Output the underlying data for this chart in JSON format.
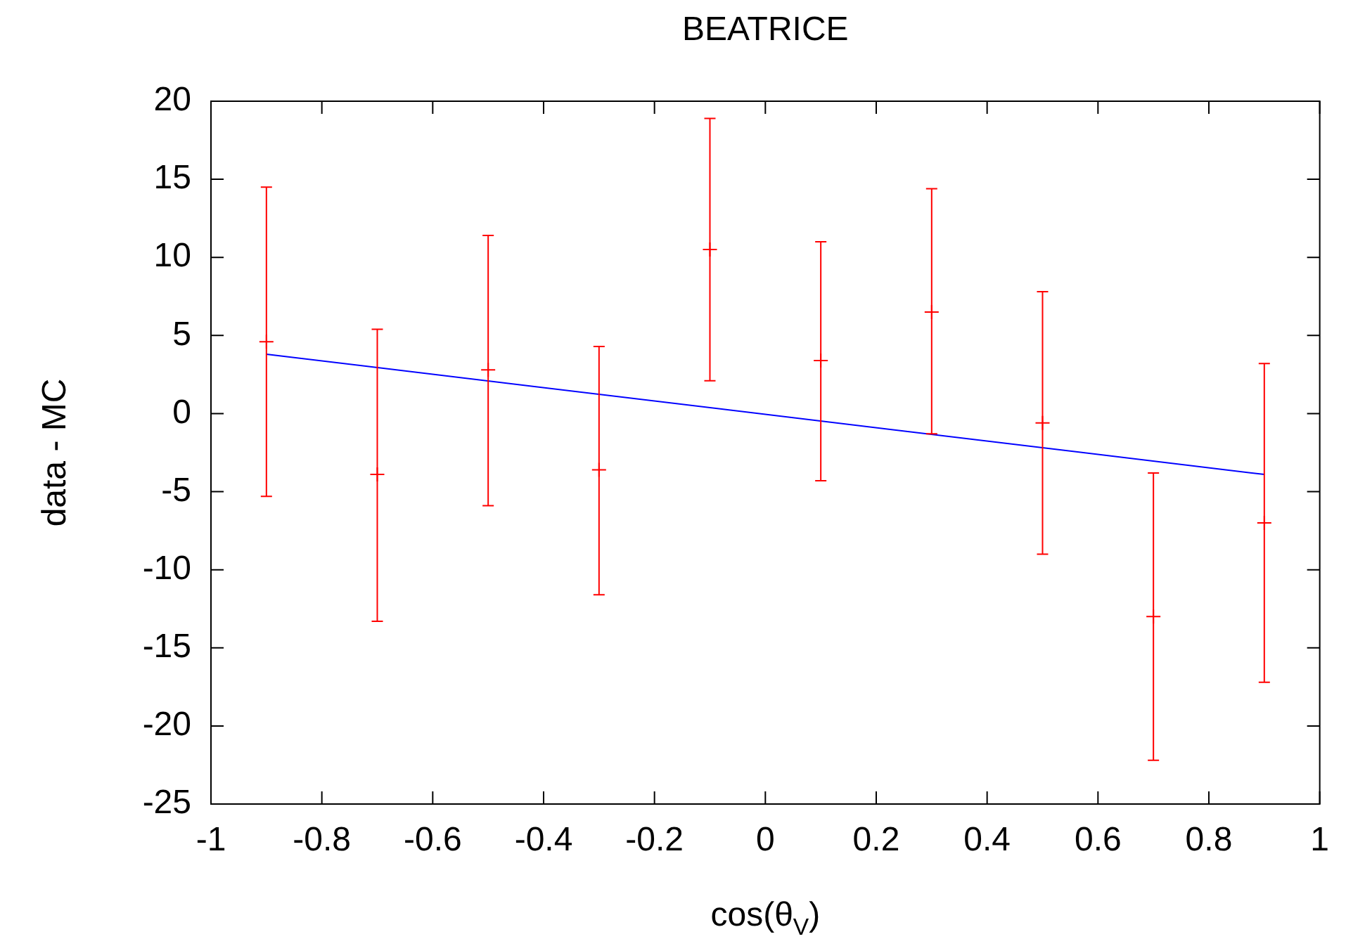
{
  "chart_data": {
    "type": "scatter",
    "title": "BEATRICE",
    "xlabel": "cos(θ$_{V}$)",
    "ylabel": "data - MC",
    "x": [
      -0.9,
      -0.7,
      -0.5,
      -0.3,
      -0.1,
      0.1,
      0.3,
      0.5,
      0.7,
      0.9
    ],
    "series": [
      {
        "marker": "cross",
        "color": "#ff0000",
        "values": [
          4.6,
          -3.9,
          2.8,
          -3.6,
          10.5,
          3.4,
          6.5,
          -0.6,
          -13.0,
          -7.0
        ],
        "errors": [
          [
            -5.3,
            14.5
          ],
          [
            -13.3,
            5.4
          ],
          [
            -5.9,
            11.4
          ],
          [
            -11.6,
            4.3
          ],
          [
            2.1,
            18.9
          ],
          [
            -4.3,
            11.0
          ],
          [
            -1.3,
            14.4
          ],
          [
            -9.0,
            7.8
          ],
          [
            -22.2,
            -3.8
          ],
          [
            -17.2,
            3.2
          ]
        ]
      },
      {
        "type": "line",
        "color": "#0000ff",
        "x": [
          -0.9,
          0.9
        ],
        "values": [
          3.8,
          -3.9
        ]
      }
    ],
    "xlim": [
      -1,
      1
    ],
    "xticks": [
      -1,
      -0.8,
      -0.6,
      -0.4,
      -0.2,
      0,
      0.2,
      0.4,
      0.6,
      0.8,
      1
    ],
    "ylim": [
      -25,
      20
    ],
    "yticks": [
      -25,
      -20,
      -15,
      -10,
      -5,
      0,
      5,
      10,
      15,
      20
    ],
    "grid": false,
    "legend": false,
    "line_style": "solid"
  }
}
